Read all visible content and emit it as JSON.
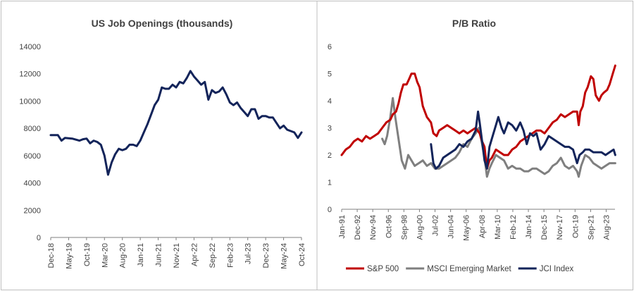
{
  "chart_data": [
    {
      "type": "line",
      "title": "US Job Openings (thousands)",
      "xlabel": "",
      "ylabel": "",
      "ylim": [
        0,
        14000
      ],
      "yticks": [
        0,
        2000,
        4000,
        6000,
        8000,
        10000,
        12000,
        14000
      ],
      "xticks": [
        "Dec-18",
        "May-19",
        "Oct-19",
        "Mar-20",
        "Aug-20",
        "Jan-21",
        "Jun-21",
        "Nov-21",
        "Apr-22",
        "Sep-22",
        "Feb-23",
        "Jul-23",
        "Dec-23",
        "May-24",
        "Oct-24"
      ],
      "grid": false,
      "legend": "none",
      "series": [
        {
          "color": "#13245a",
          "x": [
            "Dec-18",
            "Feb-19",
            "Mar-19",
            "Apr-19",
            "Jun-19",
            "Aug-19",
            "Sep-19",
            "Oct-19",
            "Nov-19",
            "Dec-19",
            "Jan-20",
            "Feb-20",
            "Mar-20",
            "Apr-20",
            "May-20",
            "Jun-20",
            "Jul-20",
            "Aug-20",
            "Sep-20",
            "Oct-20",
            "Nov-20",
            "Dec-20",
            "Jan-21",
            "Feb-21",
            "Mar-21",
            "Apr-21",
            "May-21",
            "Jun-21",
            "Jul-21",
            "Aug-21",
            "Sep-21",
            "Oct-21",
            "Nov-21",
            "Dec-21",
            "Jan-22",
            "Feb-22",
            "Mar-22",
            "Apr-22",
            "May-22",
            "Jun-22",
            "Jul-22",
            "Aug-22",
            "Sep-22",
            "Oct-22",
            "Nov-22",
            "Dec-22",
            "Jan-23",
            "Feb-23",
            "Mar-23",
            "Apr-23",
            "May-23",
            "Jun-23",
            "Jul-23",
            "Aug-23",
            "Sep-23",
            "Oct-23",
            "Nov-23",
            "Dec-23",
            "Jan-24",
            "Feb-24",
            "Mar-24",
            "Apr-24",
            "May-24",
            "Jun-24",
            "Jul-24",
            "Aug-24",
            "Sep-24",
            "Oct-24"
          ],
          "values": [
            7500,
            7500,
            7100,
            7300,
            7250,
            7100,
            7200,
            7250,
            6900,
            7100,
            7000,
            6800,
            6000,
            4600,
            5500,
            6100,
            6500,
            6400,
            6500,
            6800,
            6800,
            6700,
            7100,
            7700,
            8300,
            9000,
            9700,
            10100,
            11000,
            10900,
            10900,
            11200,
            11000,
            11400,
            11300,
            11700,
            12200,
            11800,
            11500,
            11200,
            11400,
            10100,
            10800,
            10600,
            10700,
            11000,
            10500,
            9900,
            9700,
            9900,
            9500,
            9200,
            8900,
            9400,
            9400,
            8700,
            8900,
            8900,
            8800,
            8800,
            8400,
            8000,
            8200,
            7900,
            7800,
            7700,
            7300,
            7700
          ]
        }
      ]
    },
    {
      "type": "line",
      "title": "P/B Ratio",
      "xlabel": "",
      "ylabel": "",
      "ylim": [
        0,
        6
      ],
      "yticks": [
        0,
        1,
        2,
        3,
        4,
        5,
        6
      ],
      "xticks": [
        "Jan-91",
        "Dec-92",
        "Nov-94",
        "Oct-96",
        "Sep-98",
        "Aug-00",
        "Jul-02",
        "Jun-04",
        "May-06",
        "Apr-08",
        "Mar-10",
        "Feb-12",
        "Jan-14",
        "Dec-15",
        "Nov-17",
        "Oct-19",
        "Sep-21",
        "Aug-23"
      ],
      "x_start": "Jan-91",
      "x_end": "Sep-24",
      "grid": false,
      "legend": "bottom",
      "series": [
        {
          "name": "S&P 500",
          "color": "#c00000",
          "x": [
            1991.0,
            1991.5,
            1992.0,
            1992.5,
            1993.0,
            1993.5,
            1994.0,
            1994.5,
            1995.0,
            1995.5,
            1996.0,
            1996.5,
            1997.0,
            1997.3,
            1997.7,
            1998.0,
            1998.3,
            1998.6,
            1999.0,
            1999.3,
            1999.6,
            2000.0,
            2000.3,
            2000.6,
            2001.0,
            2001.5,
            2002.0,
            2002.3,
            2002.7,
            2003.0,
            2003.5,
            2004.0,
            2004.5,
            2005.0,
            2005.5,
            2006.0,
            2006.5,
            2007.0,
            2007.5,
            2008.0,
            2008.3,
            2008.6,
            2008.9,
            2009.2,
            2009.5,
            2010.0,
            2010.5,
            2011.0,
            2011.5,
            2012.0,
            2012.5,
            2013.0,
            2013.5,
            2014.0,
            2014.5,
            2015.0,
            2015.5,
            2016.0,
            2016.5,
            2017.0,
            2017.5,
            2018.0,
            2018.5,
            2019.0,
            2019.5,
            2020.0,
            2020.2,
            2020.4,
            2020.7,
            2021.0,
            2021.3,
            2021.7,
            2022.0,
            2022.3,
            2022.7,
            2023.0,
            2023.3,
            2023.7,
            2024.0,
            2024.4,
            2024.7
          ],
          "values": [
            2.0,
            2.2,
            2.3,
            2.5,
            2.6,
            2.5,
            2.7,
            2.6,
            2.7,
            2.8,
            3.0,
            3.2,
            3.3,
            3.5,
            3.6,
            3.9,
            4.3,
            4.6,
            4.6,
            4.8,
            5.0,
            5.0,
            4.7,
            4.5,
            3.8,
            3.4,
            3.2,
            2.8,
            2.7,
            2.9,
            3.0,
            3.1,
            3.0,
            2.9,
            2.8,
            2.9,
            2.8,
            2.9,
            3.0,
            2.8,
            2.5,
            2.3,
            1.5,
            1.8,
            1.9,
            2.2,
            2.1,
            2.0,
            2.0,
            2.2,
            2.3,
            2.5,
            2.6,
            2.7,
            2.8,
            2.9,
            2.9,
            2.8,
            3.0,
            3.2,
            3.3,
            3.5,
            3.4,
            3.5,
            3.6,
            3.6,
            3.1,
            3.6,
            3.8,
            4.3,
            4.5,
            4.9,
            4.8,
            4.2,
            4.0,
            4.2,
            4.3,
            4.4,
            4.6,
            5.0,
            5.3
          ]
        },
        {
          "name": "MSCI Emerging Market",
          "color": "#7f7f7f",
          "x": [
            1991.0,
            1991.5,
            1992.0,
            1992.5,
            1993.0,
            1993.5,
            1994.0,
            1994.5,
            1995.0,
            1995.5,
            1996.0,
            1996.3,
            1996.6,
            1997.0,
            1997.3,
            1997.6,
            1998.0,
            1998.4,
            1998.8,
            1999.2,
            1999.6,
            2000.0,
            2000.5,
            2001.0,
            2001.5,
            2002.0,
            2002.5,
            2003.0,
            2003.5,
            2004.0,
            2004.5,
            2005.0,
            2005.5,
            2006.0,
            2006.5,
            2007.0,
            2007.5,
            2007.9,
            2008.3,
            2008.6,
            2008.9,
            2009.2,
            2009.5,
            2010.0,
            2010.5,
            2011.0,
            2011.5,
            2012.0,
            2012.5,
            2013.0,
            2013.5,
            2014.0,
            2014.5,
            2015.0,
            2015.5,
            2016.0,
            2016.5,
            2017.0,
            2017.5,
            2018.0,
            2018.5,
            2019.0,
            2019.5,
            2020.0,
            2020.2,
            2020.5,
            2021.0,
            2021.5,
            2022.0,
            2022.5,
            2023.0,
            2023.5,
            2024.0,
            2024.5,
            2024.7
          ],
          "values": [
            null,
            null,
            null,
            null,
            null,
            null,
            null,
            null,
            null,
            null,
            2.6,
            2.4,
            2.7,
            3.4,
            4.1,
            3.4,
            2.6,
            1.8,
            1.5,
            2.0,
            1.8,
            1.6,
            1.7,
            1.8,
            1.6,
            1.7,
            1.5,
            1.5,
            1.6,
            1.7,
            1.8,
            1.9,
            2.1,
            2.4,
            2.3,
            2.6,
            2.8,
            3.0,
            2.4,
            1.9,
            1.2,
            1.5,
            1.7,
            2.0,
            1.9,
            1.8,
            1.5,
            1.6,
            1.5,
            1.5,
            1.4,
            1.4,
            1.5,
            1.5,
            1.4,
            1.3,
            1.4,
            1.6,
            1.7,
            1.9,
            1.6,
            1.5,
            1.6,
            1.4,
            1.2,
            1.6,
            2.0,
            1.9,
            1.7,
            1.6,
            1.5,
            1.6,
            1.7,
            1.7,
            1.7
          ]
        },
        {
          "name": "JCI Index",
          "color": "#13245a",
          "x": [
            2002.0,
            2002.3,
            2002.6,
            2003.0,
            2003.5,
            2004.0,
            2004.5,
            2005.0,
            2005.5,
            2006.0,
            2006.5,
            2007.0,
            2007.5,
            2007.8,
            2008.0,
            2008.3,
            2008.6,
            2008.9,
            2009.2,
            2009.5,
            2010.0,
            2010.3,
            2010.7,
            2011.0,
            2011.5,
            2012.0,
            2012.5,
            2013.0,
            2013.4,
            2013.8,
            2014.2,
            2014.6,
            2015.0,
            2015.5,
            2016.0,
            2016.5,
            2017.0,
            2017.5,
            2018.0,
            2018.5,
            2019.0,
            2019.5,
            2020.0,
            2020.3,
            2020.7,
            2021.0,
            2021.5,
            2022.0,
            2022.5,
            2023.0,
            2023.5,
            2024.0,
            2024.5,
            2024.7
          ],
          "values": [
            2.4,
            1.7,
            1.5,
            1.6,
            1.9,
            2.0,
            2.1,
            2.2,
            2.4,
            2.3,
            2.5,
            2.6,
            2.9,
            3.6,
            3.2,
            2.5,
            1.8,
            1.5,
            2.3,
            2.6,
            3.1,
            3.4,
            3.0,
            2.8,
            3.2,
            3.1,
            2.9,
            3.2,
            2.9,
            2.4,
            2.8,
            2.7,
            2.8,
            2.2,
            2.4,
            2.7,
            2.6,
            2.5,
            2.4,
            2.3,
            2.3,
            2.2,
            1.7,
            2.0,
            2.1,
            2.2,
            2.2,
            2.1,
            2.1,
            2.1,
            2.0,
            2.1,
            2.2,
            2.0
          ]
        }
      ]
    }
  ]
}
